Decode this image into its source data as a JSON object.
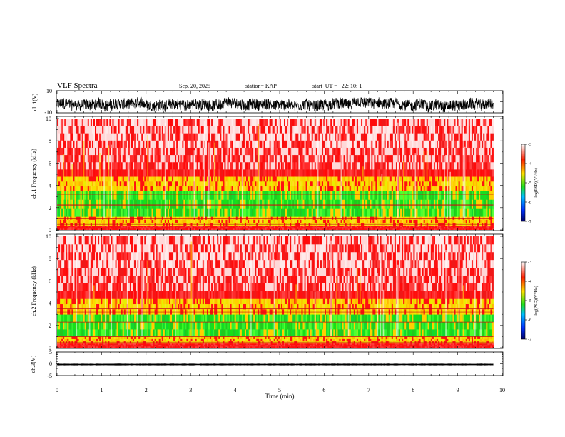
{
  "header": {
    "title": "VLF Spectra",
    "date": "Sep. 20, 2025",
    "station": "station= KAP",
    "start": "start  UT =   22: 10: 1"
  },
  "colors": {
    "background": "#ffffff",
    "trace": "#000000",
    "spec_high": "#ff1a1a",
    "spec_mid": "#ffd400",
    "spec_low": "#22e01e",
    "colorbar": [
      "#000066",
      "#0033ff",
      "#00c0ff",
      "#22e01e",
      "#ffe000",
      "#ff2000",
      "#ffffff"
    ]
  },
  "chart_data": [
    {
      "type": "line",
      "name": "ch1-waveform",
      "ylabel": "ch.1(V)",
      "ylim": [
        -10,
        10
      ],
      "yticks": [
        "10",
        "-10"
      ],
      "xlim": [
        0,
        10
      ],
      "data_extent_min": 9.8,
      "mean": -2.5,
      "amplitude": 5
    },
    {
      "type": "heatmap",
      "name": "ch1-spectrogram",
      "ylabel": "ch.1 Frequency (kHz)",
      "ylim": [
        0,
        10
      ],
      "yticks": [
        "0",
        "2",
        "4",
        "6",
        "8",
        "10"
      ],
      "xlim": [
        0,
        9.8
      ],
      "bands_khz": [
        {
          "from": 0.0,
          "to": 0.4,
          "level": "red"
        },
        {
          "from": 0.4,
          "to": 1.2,
          "level": "yellow"
        },
        {
          "from": 1.2,
          "to": 3.5,
          "level": "green"
        },
        {
          "from": 3.5,
          "to": 4.8,
          "level": "yellow"
        },
        {
          "from": 4.8,
          "to": 10.0,
          "level": "red"
        }
      ],
      "colorbar": {
        "label": "log(PSD)(V²/Hz)",
        "ticks": [
          "-3",
          "-4",
          "-5",
          "-6",
          "-7"
        ],
        "range": [
          -7,
          -3
        ]
      }
    },
    {
      "type": "heatmap",
      "name": "ch2-spectrogram",
      "ylabel": "ch.2 Frequency (kHz)",
      "ylim": [
        0,
        10
      ],
      "yticks": [
        "0",
        "2",
        "4",
        "6",
        "8",
        "10"
      ],
      "xlim": [
        0,
        9.8
      ],
      "bands_khz": [
        {
          "from": 0.0,
          "to": 0.4,
          "level": "red"
        },
        {
          "from": 0.4,
          "to": 1.0,
          "level": "yellow"
        },
        {
          "from": 1.0,
          "to": 3.0,
          "level": "green"
        },
        {
          "from": 3.0,
          "to": 4.4,
          "level": "yellow"
        },
        {
          "from": 4.4,
          "to": 10.0,
          "level": "red"
        }
      ],
      "colorbar": {
        "label": "log(PSD)(V²/Hz)",
        "ticks": [
          "-3",
          "-4",
          "-5",
          "-6",
          "-7"
        ],
        "range": [
          -7,
          -3
        ]
      }
    },
    {
      "type": "line",
      "name": "ch3-waveform",
      "ylabel": "ch.3(V)",
      "ylim": [
        -5,
        5
      ],
      "yticks": [
        "5",
        "0",
        "-5"
      ],
      "xlim": [
        0,
        10
      ],
      "data_extent_min": 9.8,
      "mean": -0.3,
      "amplitude": 0.3
    }
  ],
  "xaxis": {
    "label": "Time (min)",
    "ticks": [
      "0",
      "1",
      "2",
      "3",
      "4",
      "5",
      "6",
      "7",
      "8",
      "9",
      "10"
    ],
    "range": [
      0,
      10
    ]
  }
}
